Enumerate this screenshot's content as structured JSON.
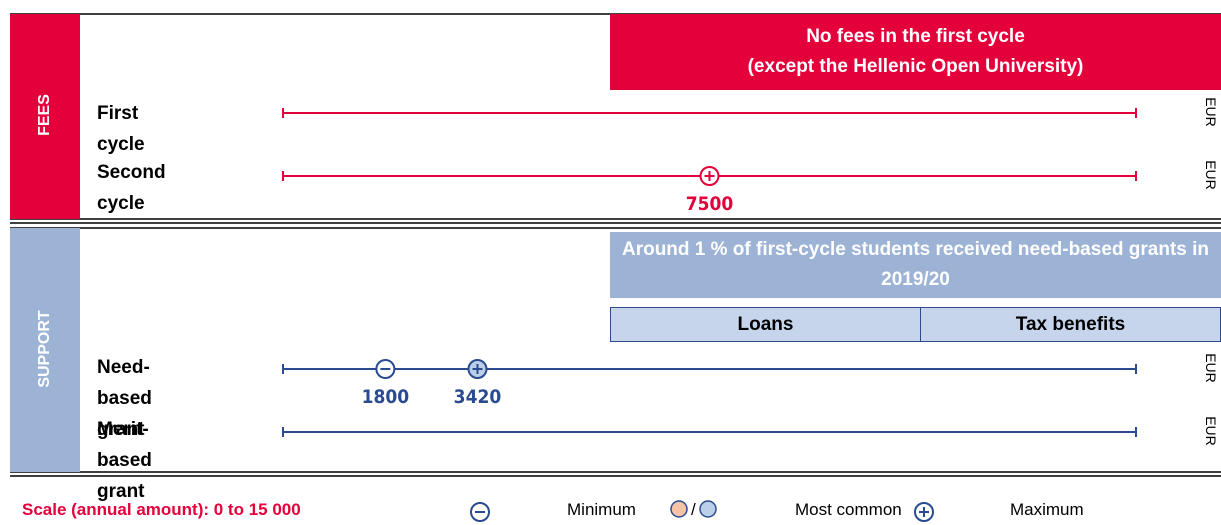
{
  "scale_range": [
    0,
    15000
  ],
  "fees": {
    "label": "FEES",
    "banner": [
      "No fees in the first cycle",
      "(except the Hellenic Open University)"
    ],
    "rows": [
      {
        "label": "First cycle",
        "unit": "EUR",
        "markers": {}
      },
      {
        "label": "Second cycle",
        "unit": "EUR",
        "markers": {
          "maximum": 7500
        }
      }
    ]
  },
  "support": {
    "label": "SUPPORT",
    "banner": "Around 1 % of first-cycle students received need-based grants in 2019/20",
    "cells": [
      "Loans",
      "Tax benefits"
    ],
    "rows": [
      {
        "label": "Need-based grant",
        "unit": "EUR",
        "markers": {
          "minimum": 1800,
          "maximum": 3420
        }
      },
      {
        "label": "Merit-based grant",
        "unit": "EUR",
        "markers": {}
      }
    ]
  },
  "legend": {
    "scale": "Scale (annual amount): 0 to 15 000",
    "separator": "/",
    "items": [
      "Minimum",
      "Most common",
      "Maximum"
    ]
  }
}
